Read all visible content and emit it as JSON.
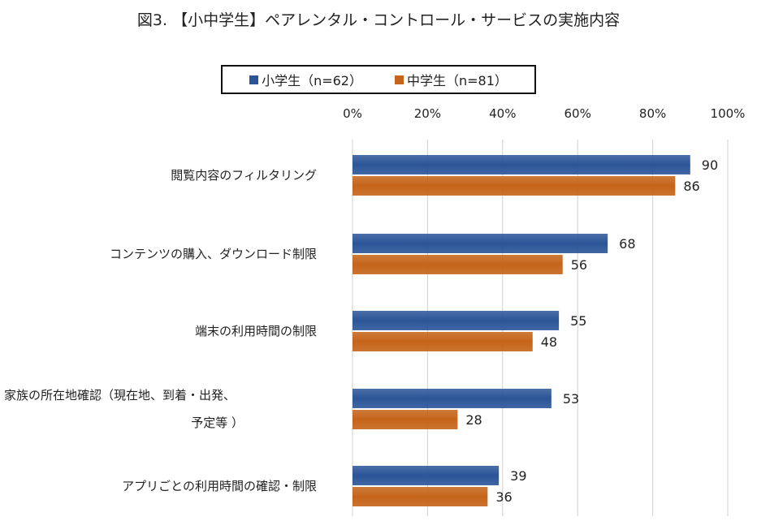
{
  "chart_data": {
    "type": "bar",
    "orientation": "horizontal",
    "title": "図3. 【小中学生】ペアレンタル・コントロール・サービスの実施内容",
    "categories": [
      [
        "閲覧内容のフィルタリング"
      ],
      [
        "コンテンツの購入、ダウンロード制限"
      ],
      [
        "端末の利用時間の制限"
      ],
      [
        "家族の所在地確認（現在地、到着・出発、",
        "予定等 ）"
      ],
      [
        "アプリごとの利用時間の確認・制限"
      ]
    ],
    "series": [
      {
        "name": "小学生（n=62）",
        "color": "#2b5598",
        "values": [
          90,
          68,
          55,
          53,
          39
        ]
      },
      {
        "name": "中学生（n=81）",
        "color": "#c5641a",
        "values": [
          86,
          56,
          48,
          28,
          36
        ]
      }
    ],
    "xlim": [
      0,
      100
    ],
    "xticks": [
      "0%",
      "20%",
      "40%",
      "60%",
      "80%",
      "100%"
    ],
    "grid": true,
    "legend_position": "top",
    "data_labels": true
  }
}
